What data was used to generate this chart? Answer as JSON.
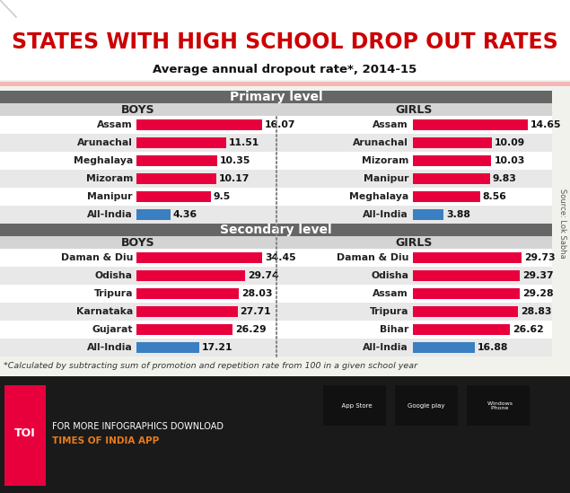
{
  "title": "STATES WITH HIGH SCHOOL DROP OUT RATES",
  "subtitle": "Average annual dropout rate*, 2014-15",
  "primary_boys": {
    "labels": [
      "Assam",
      "Arunachal",
      "Meghalaya",
      "Mizoram",
      "Manipur",
      "All-India"
    ],
    "values": [
      16.07,
      11.51,
      10.35,
      10.17,
      9.5,
      4.36
    ],
    "colors": [
      "#e8003d",
      "#e8003d",
      "#e8003d",
      "#e8003d",
      "#e8003d",
      "#3a7fc1"
    ]
  },
  "primary_girls": {
    "labels": [
      "Assam",
      "Arunachal",
      "Mizoram",
      "Manipur",
      "Meghalaya",
      "All-India"
    ],
    "values": [
      14.65,
      10.09,
      10.03,
      9.83,
      8.56,
      3.88
    ],
    "colors": [
      "#e8003d",
      "#e8003d",
      "#e8003d",
      "#e8003d",
      "#e8003d",
      "#3a7fc1"
    ]
  },
  "secondary_boys": {
    "labels": [
      "Daman & Diu",
      "Odisha",
      "Tripura",
      "Karnataka",
      "Gujarat",
      "All-India"
    ],
    "values": [
      34.45,
      29.74,
      28.03,
      27.71,
      26.29,
      17.21
    ],
    "colors": [
      "#e8003d",
      "#e8003d",
      "#e8003d",
      "#e8003d",
      "#e8003d",
      "#3a7fc1"
    ]
  },
  "secondary_girls": {
    "labels": [
      "Daman & Diu",
      "Odisha",
      "Assam",
      "Tripura",
      "Bihar",
      "All-India"
    ],
    "values": [
      29.73,
      29.37,
      29.28,
      28.83,
      26.62,
      16.88
    ],
    "colors": [
      "#e8003d",
      "#e8003d",
      "#e8003d",
      "#e8003d",
      "#e8003d",
      "#3a7fc1"
    ]
  },
  "bg_color": "#f2f2ed",
  "section_header_color": "#555555",
  "row_colors_primary": [
    "#ffffff",
    "#e8e8e8",
    "#ffffff",
    "#e8e8e8",
    "#ffffff",
    "#e8e8e8"
  ],
  "row_colors_secondary": [
    "#ffffff",
    "#e8e8e8",
    "#ffffff",
    "#e8e8e8",
    "#ffffff",
    "#e8e8e8"
  ],
  "title_color": "#cc0000",
  "title_bg": "#ffffff",
  "section_hdr_bg": "#666666",
  "col_hdr_bg": "#d4d4d4",
  "footnote": "*Calculated by subtracting sum of promotion and repetition rate from 100 in a given school year",
  "source_text": "Source: Lok Sabha",
  "footer_bg": "#1a1a1a",
  "toi_color": "#e8003d",
  "toi_orange": "#e87c1e",
  "primary_max": 16.07,
  "secondary_max": 34.45
}
